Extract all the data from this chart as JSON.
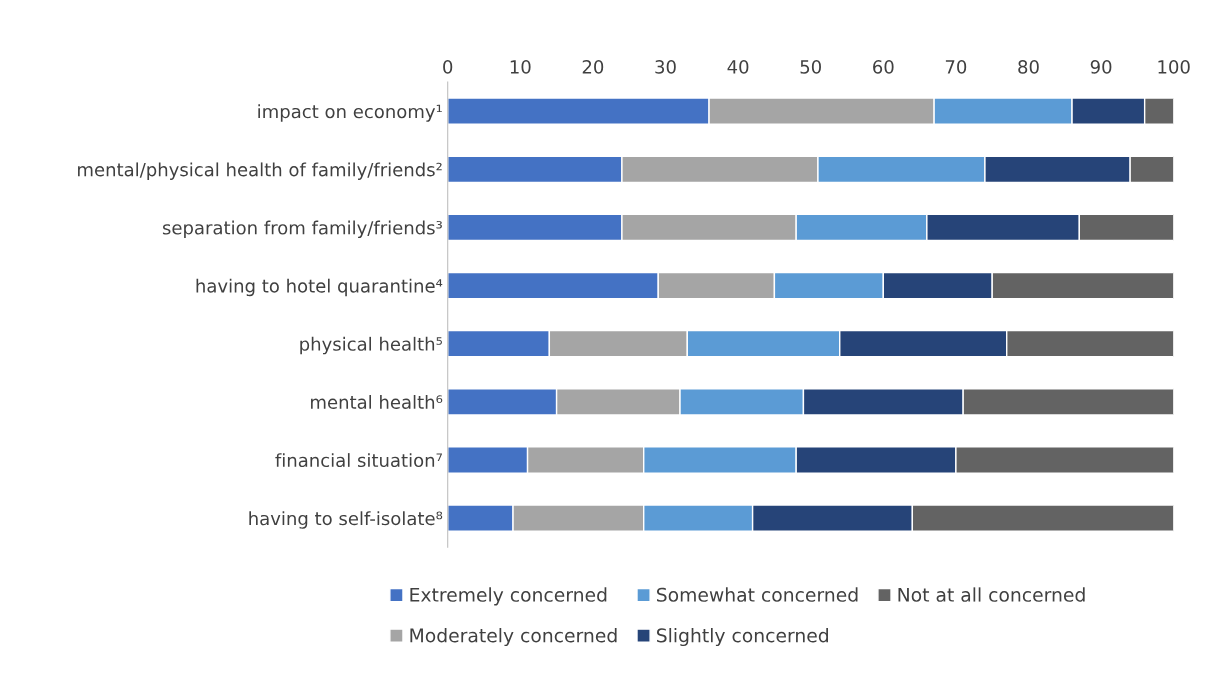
{
  "chart_data": {
    "type": "bar",
    "orientation": "horizontal",
    "stacked": true,
    "categories": [
      "impact on economy¹",
      "mental/physical health of family/friends²",
      "separation from family/friends³",
      "having to hotel quarantine⁴",
      "physical health⁵",
      "mental health⁶",
      "financial situation⁷",
      "having to self-isolate⁸"
    ],
    "series": [
      {
        "name": "Extremely concerned",
        "color": "#4472c4",
        "values": [
          36,
          24,
          24,
          29,
          14,
          15,
          11,
          9
        ]
      },
      {
        "name": "Moderately concerned",
        "color": "#a5a5a5",
        "values": [
          31,
          27,
          24,
          16,
          19,
          17,
          16,
          18
        ]
      },
      {
        "name": "Somewhat concerned",
        "color": "#5b9bd5",
        "values": [
          19,
          23,
          18,
          15,
          21,
          17,
          21,
          15
        ]
      },
      {
        "name": "Slightly concerned",
        "color": "#264478",
        "values": [
          10,
          20,
          21,
          15,
          23,
          22,
          22,
          22
        ]
      },
      {
        "name": "Not at all concerned",
        "color": "#636363",
        "values": [
          4,
          6,
          13,
          25,
          23,
          29,
          30,
          36
        ]
      }
    ],
    "xlim": [
      0,
      100
    ],
    "xticks": [
      0,
      10,
      20,
      30,
      40,
      50,
      60,
      70,
      80,
      90,
      100
    ],
    "grid": false,
    "legend": "bottom"
  }
}
